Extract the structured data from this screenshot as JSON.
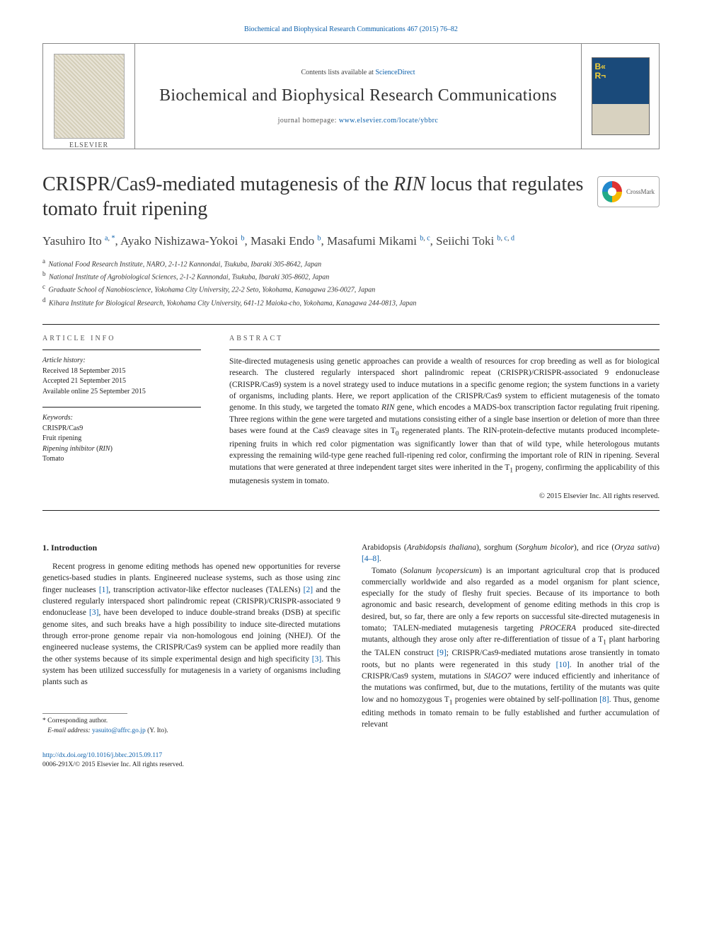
{
  "top_citation": "Biochemical and Biophysical Research Communications 467 (2015) 76–82",
  "header": {
    "contents_prefix": "Contents lists available at ",
    "contents_link": "ScienceDirect",
    "journal_name": "Biochemical and Biophysical Research Communications",
    "homepage_prefix": "journal homepage: ",
    "homepage_url": "www.elsevier.com/locate/ybbrc"
  },
  "crossmark_label": "CrossMark",
  "title_html": "CRISPR/Cas9-mediated mutagenesis of the <em>RIN</em> locus that regulates tomato fruit ripening",
  "authors_html": "Yasuhiro Ito <sup><a href=\"#\">a</a>, <a href=\"#\">*</a></sup>, Ayako Nishizawa-Yokoi <sup><a href=\"#\">b</a></sup>, Masaki Endo <sup><a href=\"#\">b</a></sup>, Masafumi Mikami <sup><a href=\"#\">b</a>, <a href=\"#\">c</a></sup>, Seiichi Toki <sup><a href=\"#\">b</a>, <a href=\"#\">c</a>, <a href=\"#\">d</a></sup>",
  "affiliations": [
    {
      "sup": "a",
      "text": "National Food Research Institute, NARO, 2-1-12 Kannondai, Tsukuba, Ibaraki 305-8642, Japan"
    },
    {
      "sup": "b",
      "text": "National Institute of Agrobiological Sciences, 2-1-2 Kannondai, Tsukuba, Ibaraki 305-8602, Japan"
    },
    {
      "sup": "c",
      "text": "Graduate School of Nanobioscience, Yokohama City University, 22-2 Seto, Yokohama, Kanagawa 236-0027, Japan"
    },
    {
      "sup": "d",
      "text": "Kihara Institute for Biological Research, Yokohama City University, 641-12 Maioka-cho, Yokohama, Kanagawa 244-0813, Japan"
    }
  ],
  "info_label": "ARTICLE INFO",
  "abstract_label": "ABSTRACT",
  "history": {
    "heading": "Article history:",
    "received": "Received 18 September 2015",
    "accepted": "Accepted 21 September 2015",
    "online": "Available online 25 September 2015"
  },
  "keywords": {
    "heading": "Keywords:",
    "items_html": [
      "CRISPR/Cas9",
      "Fruit ripening",
      "<em>Ripening inhibitor</em> (<em>RIN</em>)",
      "Tomato"
    ]
  },
  "abstract_html": "Site-directed mutagenesis using genetic approaches can provide a wealth of resources for crop breeding as well as for biological research. The clustered regularly interspaced short palindromic repeat (CRISPR)/CRISPR-associated 9 endonuclease (CRISPR/Cas9) system is a novel strategy used to induce mutations in a specific genome region; the system functions in a variety of organisms, including plants. Here, we report application of the CRISPR/Cas9 system to efficient mutagenesis of the tomato genome. In this study, we targeted the tomato <em>RIN</em> gene, which encodes a MADS-box transcription factor regulating fruit ripening. Three regions within the gene were targeted and mutations consisting either of a single base insertion or deletion of more than three bases were found at the Cas9 cleavage sites in T<sub>0</sub> regenerated plants. The RIN-protein-defective mutants produced incomplete-ripening fruits in which red color pigmentation was significantly lower than that of wild type, while heterologous mutants expressing the remaining wild-type gene reached full-ripening red color, confirming the important role of RIN in ripening. Several mutations that were generated at three independent target sites were inherited in the T<sub>1</sub> progeny, confirming the applicability of this mutagenesis system in tomato.",
  "copyright": "© 2015 Elsevier Inc. All rights reserved.",
  "intro_heading": "1. Introduction",
  "col_left_html": "Recent progress in genome editing methods has opened new opportunities for reverse genetics-based studies in plants. Engineered nuclease systems, such as those using zinc finger nucleases <a href=\"#\">[1]</a>, transcription activator-like effector nucleases (TALENs) <a href=\"#\">[2]</a> and the clustered regularly interspaced short palindromic repeat (CRISPR)/CRISPR-associated 9 endonuclease <a href=\"#\">[3]</a>, have been developed to induce double-strand breaks (DSB) at specific genome sites, and such breaks have a high possibility to induce site-directed mutations through error-prone genome repair via non-homologous end joining (NHEJ). Of the engineered nuclease systems, the CRISPR/Cas9 system can be applied more readily than the other systems because of its simple experimental design and high specificity <a href=\"#\">[3]</a>. This system has been utilized successfully for mutagenesis in a variety of organisms including plants such as",
  "col_right_p1_html": "Arabidopsis (<em>Arabidopsis thaliana</em>), sorghum (<em>Sorghum bicolor</em>), and rice (<em>Oryza sativa</em>) <a href=\"#\">[4–8]</a>.",
  "col_right_p2_html": "Tomato (<em>Solanum lycopersicum</em>) is an important agricultural crop that is produced commercially worldwide and also regarded as a model organism for plant science, especially for the study of fleshy fruit species. Because of its importance to both agronomic and basic research, development of genome editing methods in this crop is desired, but, so far, there are only a few reports on successful site-directed mutagenesis in tomato; TALEN-mediated mutagenesis targeting <em>PROCERA</em> produced site-directed mutants, although they arose only after re-differentiation of tissue of a T<sub>1</sub> plant harboring the TALEN construct <a href=\"#\">[9]</a>; CRISPR/Cas9-mediated mutations arose transiently in tomato roots, but no plants were regenerated in this study <a href=\"#\">[10]</a>. In another trial of the CRISPR/Cas9 system, mutations in <em>SlAGO7</em> were induced efficiently and inheritance of the mutations was confirmed, but, due to the mutations, fertility of the mutants was quite low and no homozygous T<sub>1</sub> progenies were obtained by self-pollination <a href=\"#\">[8]</a>. Thus, genome editing methods in tomato remain to be fully established and further accumulation of relevant",
  "footnote": {
    "corr": "* Corresponding author.",
    "email_label": "E-mail address:",
    "email": "yasuito@affrc.go.jp",
    "email_who": "(Y. Ito)."
  },
  "doi": {
    "url": "http://dx.doi.org/10.1016/j.bbrc.2015.09.117",
    "issn_line": "0006-291X/© 2015 Elsevier Inc. All rights reserved."
  },
  "colors": {
    "link": "#0a5fab",
    "text": "#222222",
    "rule": "#222222",
    "box_border": "#888888"
  },
  "typography": {
    "title_pt": 28,
    "journal_pt": 24,
    "authors_pt": 17,
    "body_pt": 11.5,
    "small_pt": 10,
    "footnote_pt": 9.5
  }
}
